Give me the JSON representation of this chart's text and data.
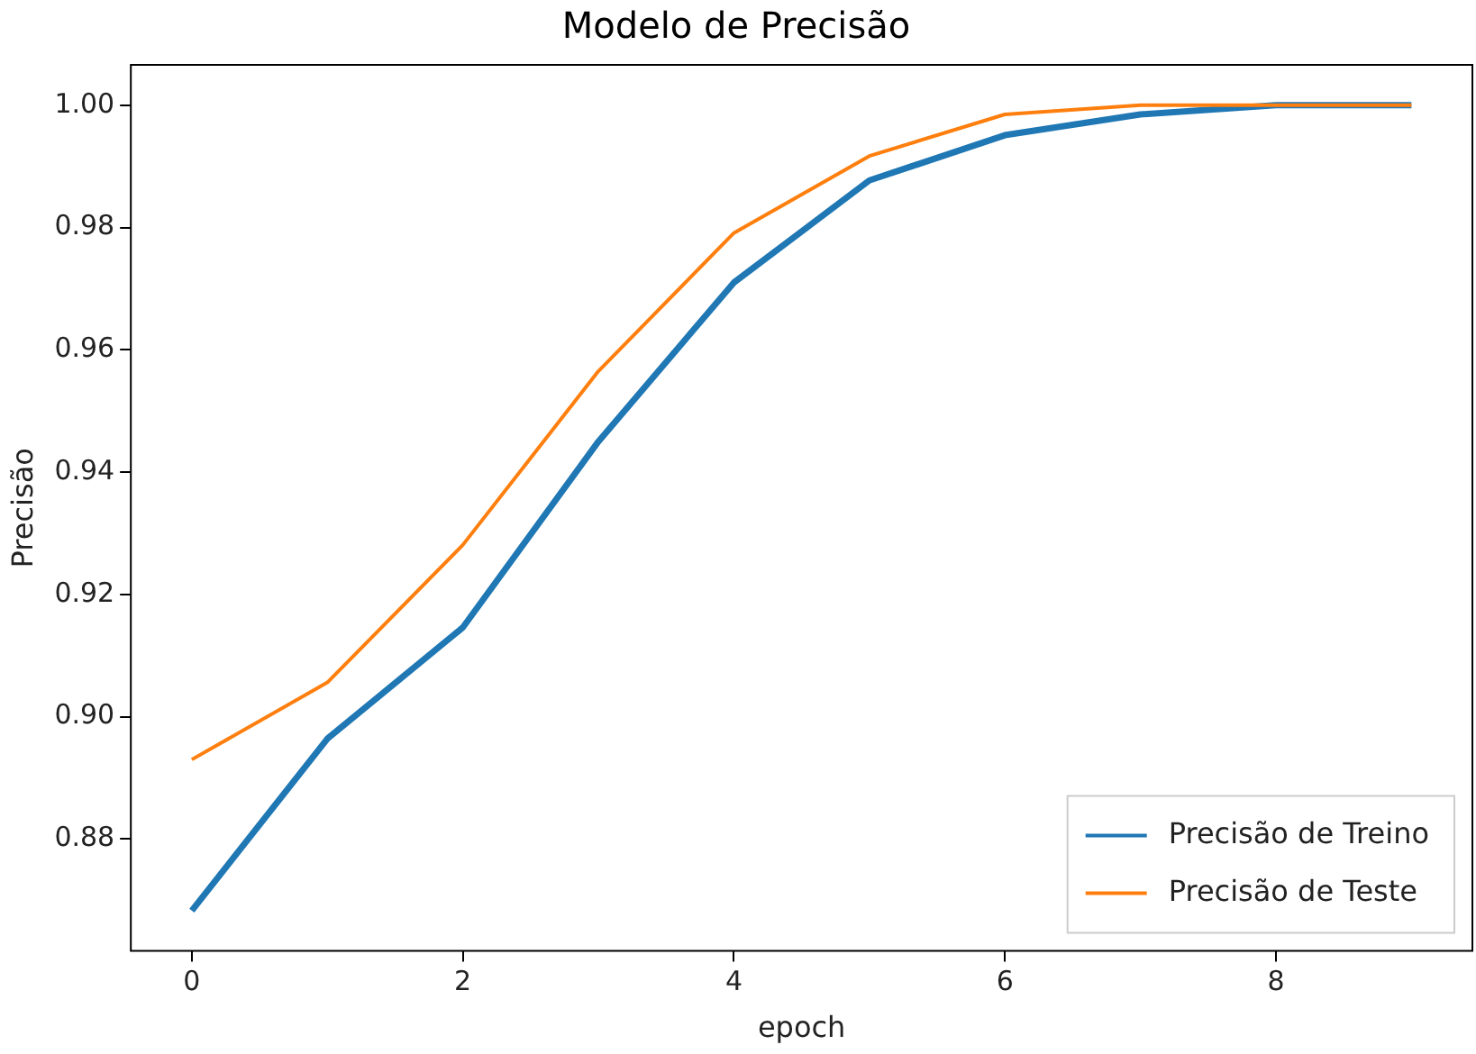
{
  "chart_data": {
    "type": "line",
    "title": "Modelo de Precisão",
    "xlabel": "epoch",
    "ylabel": "Precisão",
    "x": [
      0,
      1,
      2,
      3,
      4,
      5,
      6,
      7,
      8,
      9
    ],
    "series": [
      {
        "name": "Precisão de Treino",
        "color": "#1f77b4",
        "values": [
          0.8683,
          0.8964,
          0.9146,
          0.945,
          0.971,
          0.9877,
          0.9951,
          0.9985,
          1.0,
          1.0
        ]
      },
      {
        "name": "Precisão de Teste",
        "color": "#ff7f0e",
        "values": [
          0.893,
          0.9056,
          0.9281,
          0.9565,
          0.9791,
          0.9917,
          0.9985,
          1.0,
          1.0,
          1.0
        ]
      }
    ],
    "xlim": [
      -0.45,
      9.45
    ],
    "xticks": [
      0,
      2,
      4,
      6,
      8
    ],
    "ylim": [
      0.8617,
      1.0066
    ],
    "yticks": [
      {
        "value": 0.88,
        "label": "0.88"
      },
      {
        "value": 0.9,
        "label": "0.90"
      },
      {
        "value": 0.92,
        "label": "0.92"
      },
      {
        "value": 0.94,
        "label": "0.94"
      },
      {
        "value": 0.96,
        "label": "0.96"
      },
      {
        "value": 0.98,
        "label": "0.98"
      },
      {
        "value": 1.0,
        "label": "1.00"
      }
    ],
    "grid": false,
    "legend": "bottom right",
    "marker": "none",
    "line_style": "solid"
  }
}
